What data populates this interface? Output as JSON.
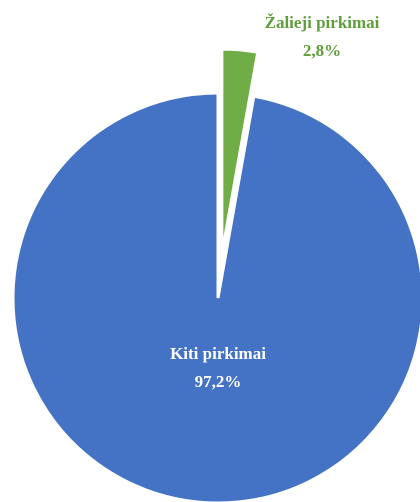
{
  "chart_data": {
    "type": "pie",
    "categories": [
      "Žalieji pirkimai",
      "Kiti pirkimai"
    ],
    "values": [
      2.8,
      97.2
    ],
    "value_labels": [
      "2,8%",
      "97,2%"
    ],
    "colors": [
      "#70ad47",
      "#4472c4"
    ]
  }
}
